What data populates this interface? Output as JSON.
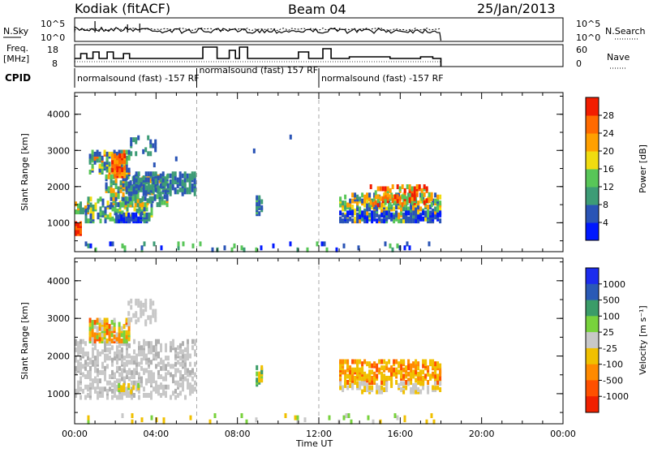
{
  "header": {
    "left": "Kodiak (fitACF)",
    "center": "Beam 04",
    "right": "25/Jan/2013"
  },
  "top_panels": {
    "nsky_label": "N.Sky",
    "nsky_ticks": [
      "10^5",
      "10^0"
    ],
    "nsearch_label": "N.Search",
    "nsearch_ticks": [
      "10^5",
      "10^0"
    ],
    "freq_label_1": "Freq.",
    "freq_label_2": "[MHz]",
    "freq_ticks": [
      "18",
      "8"
    ],
    "nave_label": "Nave",
    "nave_ticks": [
      "60",
      "0"
    ],
    "cpid_label": "CPID",
    "cpid_entries": [
      {
        "text": "normalsound (fast) -157 RF",
        "start_hour": 0
      },
      {
        "text": "normalsound (fast) 157 RF",
        "start_hour": 6
      },
      {
        "text": "normalsound (fast) -157 RF",
        "start_hour": 12
      }
    ]
  },
  "chart_data": [
    {
      "type": "heatmap",
      "panel": "power",
      "ylabel": "Slant Range [km]",
      "yticks": [
        "1000",
        "2000",
        "3000",
        "4000"
      ],
      "ylim": [
        200,
        4600
      ],
      "xlim": [
        0,
        24
      ],
      "colorbar_label": "Power [dB]",
      "colorbar_ticks": [
        "4",
        "8",
        "12",
        "16",
        "20",
        "24",
        "28"
      ],
      "colors": [
        "#0018ff",
        "#2a54b6",
        "#3d9c76",
        "#58c658",
        "#f0dc10",
        "#ffa000",
        "#ff6a00",
        "#f21d00"
      ]
    },
    {
      "type": "heatmap",
      "panel": "velocity",
      "ylabel": "Slant Range [km]",
      "yticks": [
        "1000",
        "2000",
        "3000",
        "4000"
      ],
      "ylim": [
        200,
        4600
      ],
      "xlim": [
        0,
        24
      ],
      "colorbar_label": "Velocity [m s⁻¹]",
      "colorbar_ticks": [
        "1000",
        "500",
        "100",
        "25",
        "-25",
        "-100",
        "-500",
        "-1000"
      ],
      "colors": [
        "#1c2cee",
        "#2a5ab6",
        "#3b9c68",
        "#78d23c",
        "#c8c8c8",
        "#f0c000",
        "#ff8a00",
        "#ff5000",
        "#f02000"
      ]
    }
  ],
  "xaxis": {
    "ticks": [
      "00:00",
      "04:00",
      "08:00",
      "12:00",
      "16:00",
      "20:00",
      "00:00"
    ],
    "label": "Time UT"
  }
}
